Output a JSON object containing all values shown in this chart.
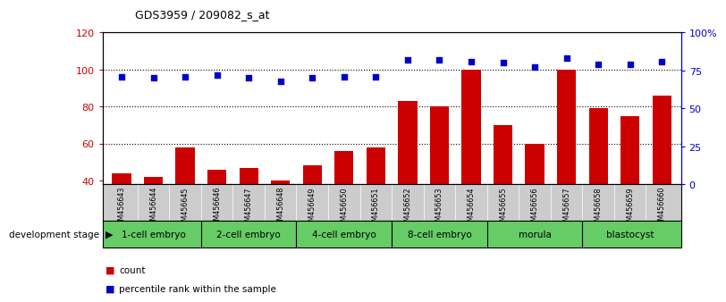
{
  "title": "GDS3959 / 209082_s_at",
  "samples": [
    "GSM456643",
    "GSM456644",
    "GSM456645",
    "GSM456646",
    "GSM456647",
    "GSM456648",
    "GSM456649",
    "GSM456650",
    "GSM456651",
    "GSM456652",
    "GSM456653",
    "GSM456654",
    "GSM456655",
    "GSM456656",
    "GSM456657",
    "GSM456658",
    "GSM456659",
    "GSM456660"
  ],
  "counts": [
    44,
    42,
    58,
    46,
    47,
    40,
    48,
    56,
    58,
    83,
    80,
    100,
    70,
    60,
    100,
    79,
    75,
    86
  ],
  "percentile_ranks": [
    71,
    70,
    71,
    72,
    70,
    68,
    70,
    71,
    71,
    82,
    82,
    81,
    80,
    77,
    83,
    79,
    79,
    81
  ],
  "stages": [
    {
      "label": "1-cell embryo",
      "start": 0,
      "end": 3
    },
    {
      "label": "2-cell embryo",
      "start": 3,
      "end": 6
    },
    {
      "label": "4-cell embryo",
      "start": 6,
      "end": 9
    },
    {
      "label": "8-cell embryo",
      "start": 9,
      "end": 12
    },
    {
      "label": "morula",
      "start": 12,
      "end": 15
    },
    {
      "label": "blastocyst",
      "start": 15,
      "end": 18
    }
  ],
  "bar_color": "#cc0000",
  "dot_color": "#0000cc",
  "stage_color": "#66cc66",
  "sample_bg_color": "#cccccc",
  "left_axis_color": "#cc0000",
  "right_axis_color": "#0000cc",
  "ylim_left": [
    38,
    120
  ],
  "ylim_right": [
    0,
    100
  ],
  "yticks_left": [
    40,
    60,
    80,
    100,
    120
  ],
  "yticks_right": [
    0,
    25,
    50,
    75,
    100
  ],
  "ytick_labels_right": [
    "0",
    "25",
    "50",
    "75",
    "100%"
  ],
  "grid_values": [
    60,
    80,
    100
  ],
  "background_color": "#ffffff"
}
